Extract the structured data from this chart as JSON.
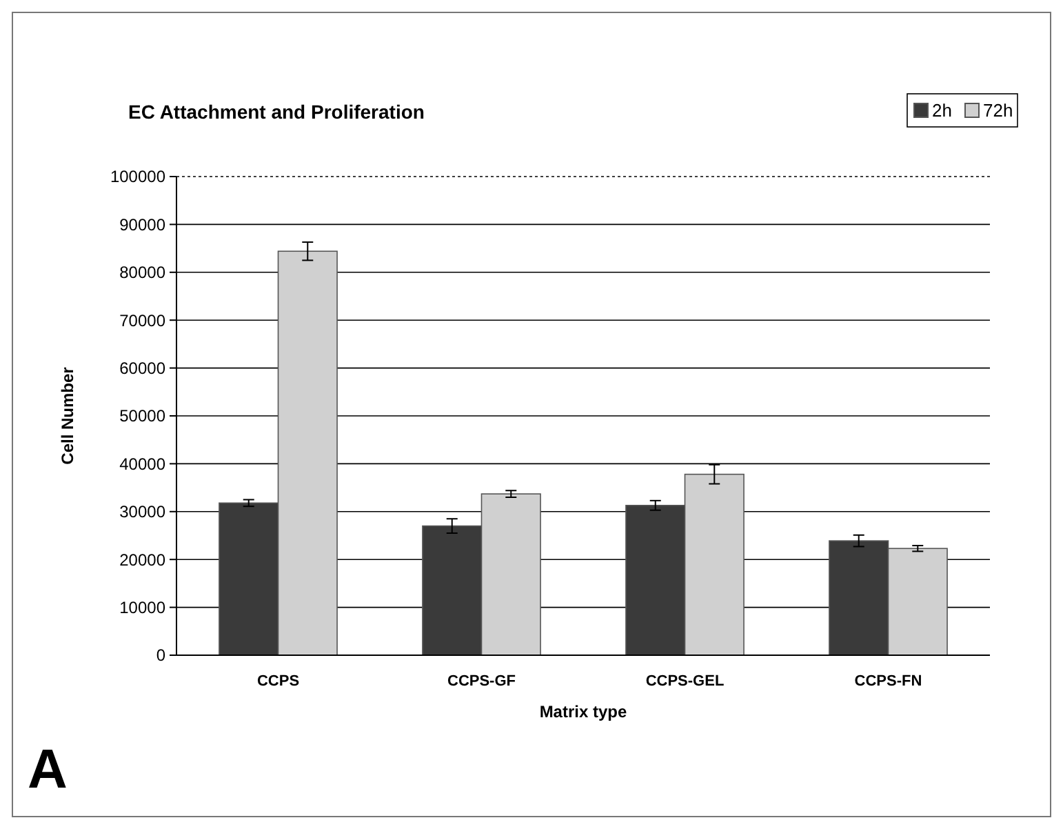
{
  "chart_data": {
    "type": "bar",
    "title": "EC Attachment and Proliferation",
    "xlabel": "Matrix type",
    "ylabel": "Cell Number",
    "categories": [
      "CCPS",
      "CCPS-GF",
      "CCPS-GEL",
      "CCPS-FN"
    ],
    "series": [
      {
        "name": "2h",
        "color": "#3a3a3a",
        "values": [
          31800,
          27000,
          31300,
          23900
        ],
        "errors": [
          700,
          1500,
          1000,
          1200
        ]
      },
      {
        "name": "72h",
        "color": "#d0d0d0",
        "values": [
          84400,
          33700,
          37800,
          22300
        ],
        "errors": [
          1900,
          700,
          2000,
          600
        ]
      }
    ],
    "ylim": [
      0,
      100000
    ],
    "yticks": [
      0,
      10000,
      20000,
      30000,
      40000,
      50000,
      60000,
      70000,
      80000,
      90000,
      100000
    ],
    "grid": "y",
    "legend": "top right",
    "annotations": [
      "A"
    ]
  }
}
